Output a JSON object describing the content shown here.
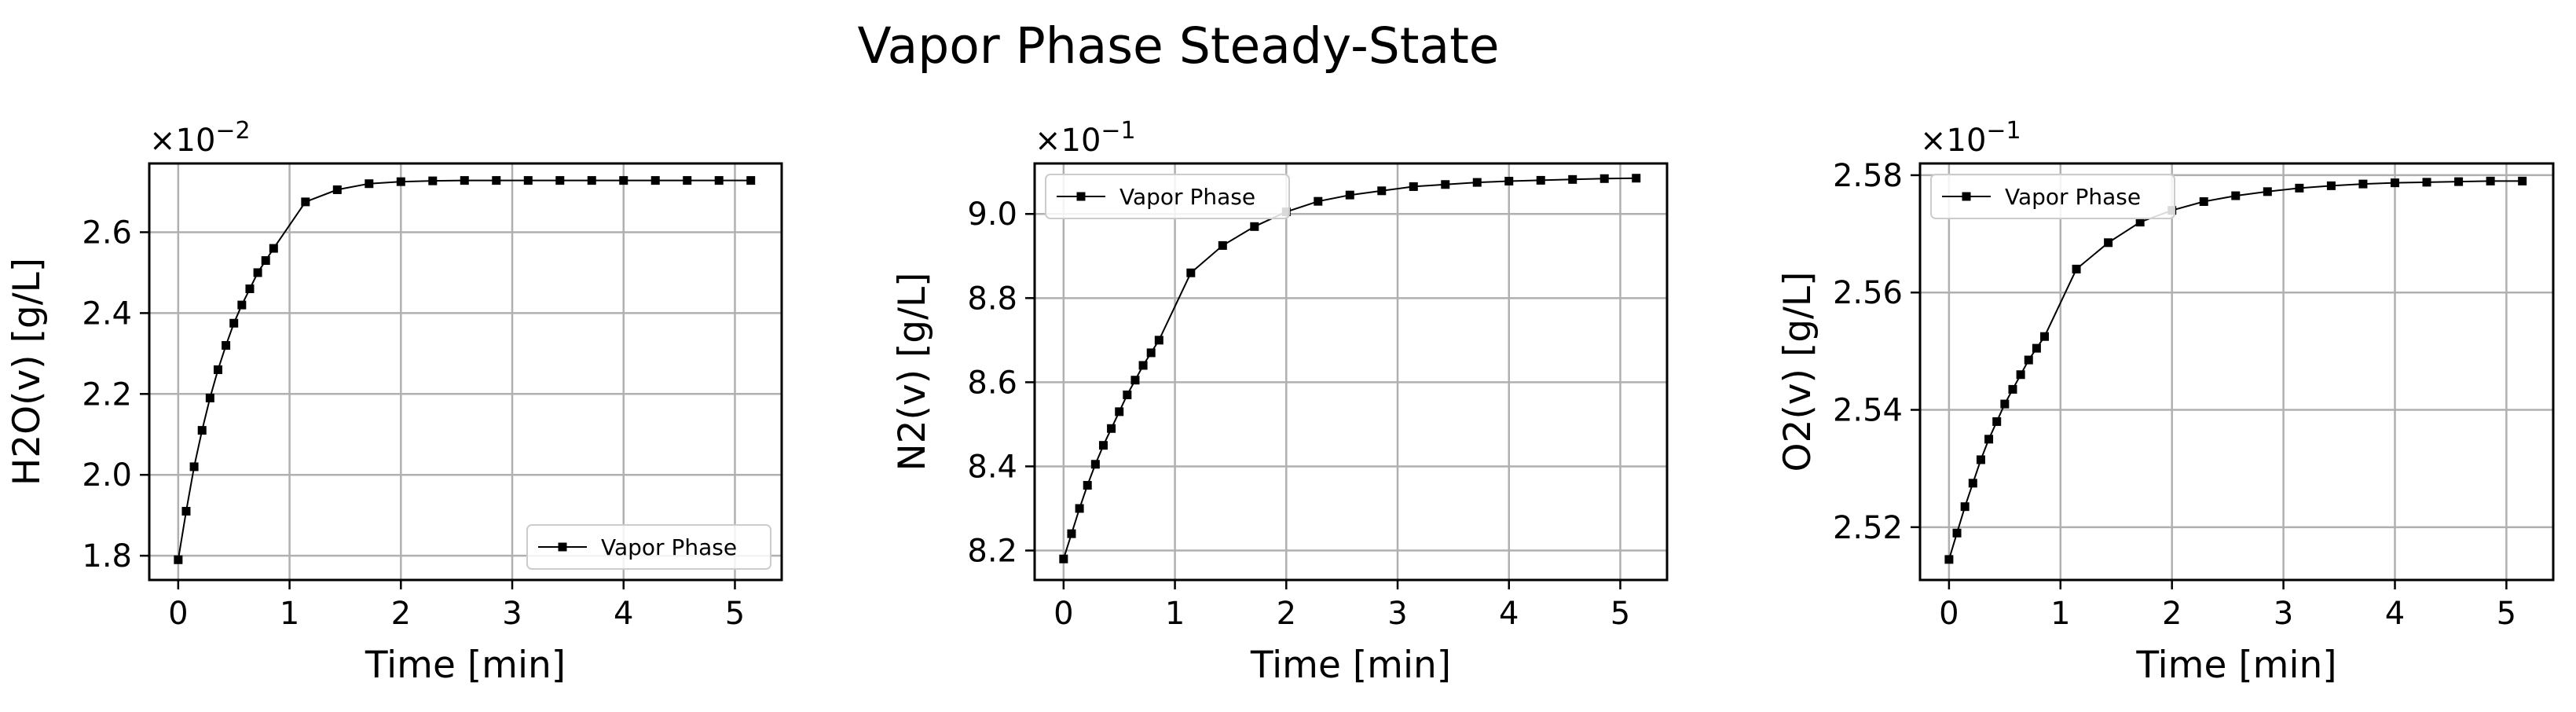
{
  "figure": {
    "title": "Vapor Phase Steady-State"
  },
  "chart_data": [
    {
      "type": "line",
      "xlabel": "Time [min]",
      "ylabel": "H2O(v) [g/L]",
      "offset_base": "×10",
      "offset_exp": "−2",
      "xlim": [
        -0.26,
        5.42
      ],
      "ylim": [
        1.74,
        2.77
      ],
      "xticks": [
        0,
        1,
        2,
        3,
        4,
        5
      ],
      "yticks": [
        1.8,
        2.0,
        2.2,
        2.4,
        2.6
      ],
      "xtick_labels": [
        "0",
        "1",
        "2",
        "3",
        "4",
        "5"
      ],
      "ytick_labels": [
        "1.8",
        "2.0",
        "2.2",
        "2.4",
        "2.6"
      ],
      "grid": true,
      "legend": "lower-right",
      "series": [
        {
          "name": "Vapor Phase",
          "color": "#000000",
          "x": [
            0,
            0.0714,
            0.1429,
            0.2143,
            0.2857,
            0.3571,
            0.4286,
            0.5,
            0.5714,
            0.6429,
            0.7143,
            0.7857,
            0.8571,
            1.1429,
            1.4286,
            1.7143,
            2.0,
            2.2857,
            2.5714,
            2.8571,
            3.1429,
            3.4286,
            3.7143,
            4.0,
            4.2857,
            4.5714,
            4.8571,
            5.1429
          ],
          "y": [
            1.79,
            1.91,
            2.02,
            2.11,
            2.19,
            2.26,
            2.32,
            2.375,
            2.42,
            2.46,
            2.5,
            2.53,
            2.56,
            2.675,
            2.705,
            2.72,
            2.725,
            2.727,
            2.728,
            2.728,
            2.728,
            2.728,
            2.728,
            2.728,
            2.728,
            2.728,
            2.728,
            2.728
          ]
        }
      ]
    },
    {
      "type": "line",
      "xlabel": "Time [min]",
      "ylabel": "N2(v) [g/L]",
      "offset_base": "×10",
      "offset_exp": "−1",
      "xlim": [
        -0.26,
        5.42
      ],
      "ylim": [
        8.13,
        9.12
      ],
      "xticks": [
        0,
        1,
        2,
        3,
        4,
        5
      ],
      "yticks": [
        8.2,
        8.4,
        8.6,
        8.8,
        9.0
      ],
      "xtick_labels": [
        "0",
        "1",
        "2",
        "3",
        "4",
        "5"
      ],
      "ytick_labels": [
        "8.2",
        "8.4",
        "8.6",
        "8.8",
        "9.0"
      ],
      "grid": true,
      "legend": "upper-left",
      "series": [
        {
          "name": "Vapor Phase",
          "color": "#000000",
          "x": [
            0,
            0.0714,
            0.1429,
            0.2143,
            0.2857,
            0.3571,
            0.4286,
            0.5,
            0.5714,
            0.6429,
            0.7143,
            0.7857,
            0.8571,
            1.1429,
            1.4286,
            1.7143,
            2.0,
            2.2857,
            2.5714,
            2.8571,
            3.1429,
            3.4286,
            3.7143,
            4.0,
            4.2857,
            4.5714,
            4.8571,
            5.1429
          ],
          "y": [
            8.18,
            8.24,
            8.3,
            8.355,
            8.405,
            8.45,
            8.49,
            8.53,
            8.57,
            8.605,
            8.64,
            8.67,
            8.7,
            8.86,
            8.925,
            8.97,
            9.005,
            9.03,
            9.045,
            9.055,
            9.065,
            9.07,
            9.075,
            9.078,
            9.08,
            9.082,
            9.084,
            9.085
          ]
        }
      ]
    },
    {
      "type": "line",
      "xlabel": "Time [min]",
      "ylabel": "O2(v) [g/L]",
      "offset_base": "×10",
      "offset_exp": "−1",
      "xlim": [
        -0.26,
        5.42
      ],
      "ylim": [
        2.511,
        2.582
      ],
      "xticks": [
        0,
        1,
        2,
        3,
        4,
        5
      ],
      "yticks": [
        2.52,
        2.54,
        2.56,
        2.58
      ],
      "xtick_labels": [
        "0",
        "1",
        "2",
        "3",
        "4",
        "5"
      ],
      "ytick_labels": [
        "2.52",
        "2.54",
        "2.56",
        "2.58"
      ],
      "grid": true,
      "legend": "upper-left",
      "series": [
        {
          "name": "Vapor Phase",
          "color": "#000000",
          "x": [
            0,
            0.0714,
            0.1429,
            0.2143,
            0.2857,
            0.3571,
            0.4286,
            0.5,
            0.5714,
            0.6429,
            0.7143,
            0.7857,
            0.8571,
            1.1429,
            1.4286,
            1.7143,
            2.0,
            2.2857,
            2.5714,
            2.8571,
            3.1429,
            3.4286,
            3.7143,
            4.0,
            4.2857,
            4.5714,
            4.8571,
            5.1429
          ],
          "y": [
            2.5145,
            2.519,
            2.5235,
            2.5275,
            2.5315,
            2.535,
            2.538,
            2.541,
            2.5435,
            2.546,
            2.5485,
            2.5505,
            2.5525,
            2.564,
            2.5685,
            2.572,
            2.574,
            2.5755,
            2.5765,
            2.5772,
            2.5778,
            2.5782,
            2.5785,
            2.5787,
            2.5788,
            2.5789,
            2.579,
            2.579
          ]
        }
      ]
    }
  ]
}
